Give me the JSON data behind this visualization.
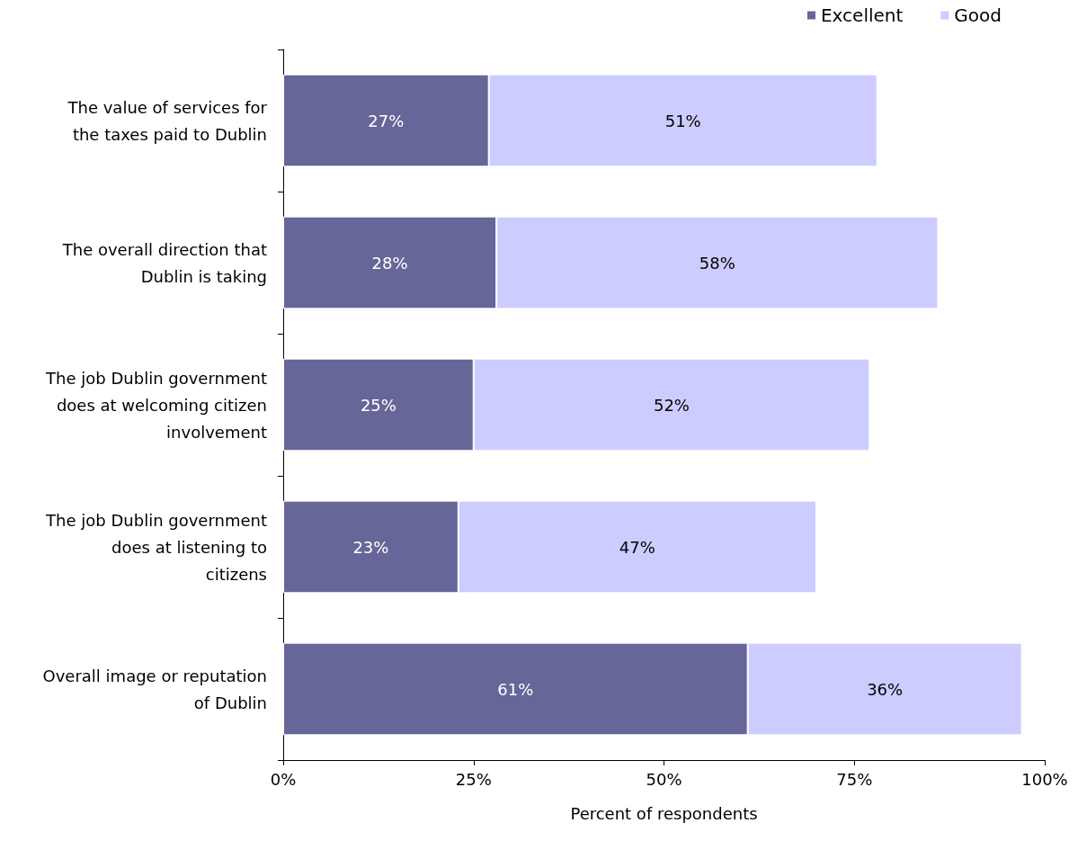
{
  "chart_data": {
    "type": "bar",
    "orientation": "horizontal",
    "stacked": true,
    "categories": [
      "The value of services for the taxes paid to Dublin",
      "The overall direction that Dublin is taking",
      "The job Dublin government does at welcoming citizen involvement",
      "The job Dublin government does at listening to citizens",
      "Overall image or reputation of Dublin"
    ],
    "series": [
      {
        "name": "Excellent",
        "color": "#666699",
        "values": [
          27,
          28,
          25,
          23,
          61
        ],
        "value_labels": [
          "27%",
          "28%",
          "25%",
          "23%",
          "61%"
        ]
      },
      {
        "name": "Good",
        "color": "#ccccff",
        "values": [
          51,
          58,
          52,
          47,
          36
        ],
        "value_labels": [
          "51%",
          "58%",
          "52%",
          "47%",
          "36%"
        ]
      }
    ],
    "xlabel": "Percent of respondents",
    "xlim": [
      0,
      100
    ],
    "xticks": [
      {
        "value": 0,
        "label": "0%"
      },
      {
        "value": 25,
        "label": "25%"
      },
      {
        "value": 50,
        "label": "50%"
      },
      {
        "value": 75,
        "label": "75%"
      },
      {
        "value": 100,
        "label": "100%"
      }
    ],
    "grid": false,
    "legend": "top right"
  }
}
